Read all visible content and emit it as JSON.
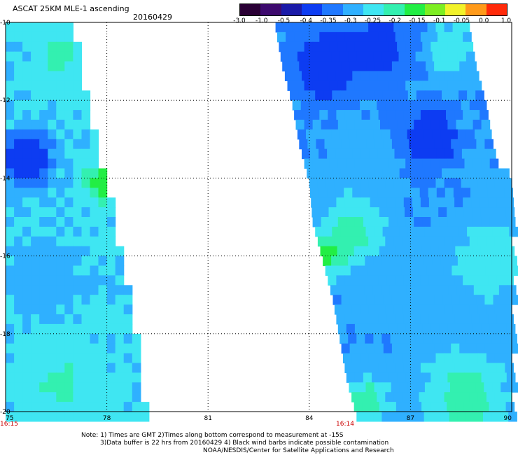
{
  "header": {
    "title": "ASCAT 25KM MLE-1 ascending",
    "date": "20160429"
  },
  "colorbar": {
    "labels": [
      "-3.0",
      "-1.0",
      "-0.5",
      "-0.4",
      "-0.35",
      "-0.3",
      "-0.25",
      "-0.2",
      "-0.15",
      "-0.1",
      "-0.05",
      "0.0",
      "1.0"
    ],
    "colors": [
      "#2a0035",
      "#3d0a6e",
      "#1a1aa8",
      "#0d3cf2",
      "#1f78ff",
      "#2fb0ff",
      "#3fe6f2",
      "#33f0b0",
      "#22ee44",
      "#7dee22",
      "#f2f22a",
      "#ff9a1a",
      "#ff2a0a"
    ]
  },
  "chart_data": {
    "type": "heatmap",
    "title": "ASCAT 25KM MLE-1 ascending",
    "subtitle": "20160429",
    "xlim": [
      75,
      90
    ],
    "ylim": [
      -20,
      -10
    ],
    "x_ticks": [
      "75",
      "78",
      "81",
      "84",
      "87",
      "90"
    ],
    "y_ticks": [
      "-10",
      "-12",
      "-14",
      "-16",
      "-18",
      "-20"
    ],
    "grid": true,
    "time_labels": [
      {
        "text": "16:15",
        "x": 75
      },
      {
        "text": "16:14",
        "x": 85
      }
    ],
    "swaths": [
      {
        "name": "west",
        "rows": [
          {
            "lat": -10.0,
            "x0": 75.0,
            "x1": 76.9
          },
          {
            "lat": -11.0,
            "x0": 75.0,
            "x1": 77.2
          },
          {
            "lat": -12.0,
            "x0": 75.0,
            "x1": 77.3
          },
          {
            "lat": -13.0,
            "x0": 75.0,
            "x1": 77.6
          },
          {
            "lat": -14.0,
            "x0": 75.0,
            "x1": 77.9
          },
          {
            "lat": -15.0,
            "x0": 75.0,
            "x1": 78.2
          },
          {
            "lat": -16.0,
            "x0": 75.0,
            "x1": 78.3
          },
          {
            "lat": -17.0,
            "x0": 75.0,
            "x1": 78.6
          },
          {
            "lat": -18.0,
            "x0": 75.0,
            "x1": 78.8
          },
          {
            "lat": -19.0,
            "x0": 75.0,
            "x1": 78.9
          },
          {
            "lat": -20.0,
            "x0": 75.0,
            "x1": 79.1
          }
        ],
        "features": [
          {
            "lat": -13.4,
            "lon": 75.5,
            "value": -0.45,
            "radius": 0.7
          },
          {
            "lat": -10.8,
            "lon": 76.5,
            "value": -0.18,
            "radius": 0.6
          },
          {
            "lat": -14.0,
            "lon": 77.7,
            "value": -0.12,
            "radius": 0.5
          },
          {
            "lat": -16.5,
            "lon": 76.0,
            "value": -0.27,
            "radius": 1.2
          },
          {
            "lat": -19.2,
            "lon": 76.5,
            "value": -0.19,
            "radius": 1.0
          }
        ],
        "base": -0.24
      },
      {
        "name": "east",
        "rows": [
          {
            "lat": -10.0,
            "x0": 83.0,
            "x1": 88.7
          },
          {
            "lat": -11.0,
            "x0": 83.2,
            "x1": 88.9
          },
          {
            "lat": -12.0,
            "x0": 83.5,
            "x1": 89.2
          },
          {
            "lat": -13.0,
            "x0": 83.7,
            "x1": 89.4
          },
          {
            "lat": -14.0,
            "x0": 84.0,
            "x1": 89.8
          },
          {
            "lat": -15.0,
            "x0": 84.1,
            "x1": 90.0
          },
          {
            "lat": -16.0,
            "x0": 84.4,
            "x1": 90.0
          },
          {
            "lat": -17.0,
            "x0": 84.7,
            "x1": 90.0
          },
          {
            "lat": -18.0,
            "x0": 84.9,
            "x1": 90.0
          },
          {
            "lat": -19.0,
            "x0": 85.1,
            "x1": 90.0
          },
          {
            "lat": -20.0,
            "x0": 85.4,
            "x1": 90.0
          }
        ],
        "features": [
          {
            "lat": -11.0,
            "lon": 84.4,
            "value": -0.4,
            "radius": 1.0
          },
          {
            "lat": -10.5,
            "lon": 86.0,
            "value": -0.37,
            "radius": 1.1
          },
          {
            "lat": -12.8,
            "lon": 87.4,
            "value": -0.42,
            "radius": 0.8
          },
          {
            "lat": -10.6,
            "lon": 88.0,
            "value": -0.2,
            "radius": 0.7
          },
          {
            "lat": -13.5,
            "lon": 85.4,
            "value": -0.27,
            "radius": 1.0
          },
          {
            "lat": -15.8,
            "lon": 84.5,
            "value": -0.08,
            "radius": 0.5
          },
          {
            "lat": -15.3,
            "lon": 85.2,
            "value": -0.17,
            "radius": 0.9
          },
          {
            "lat": -17.0,
            "lon": 87.0,
            "value": -0.29,
            "radius": 1.5
          },
          {
            "lat": -16.0,
            "lon": 89.2,
            "value": -0.2,
            "radius": 1.0
          },
          {
            "lat": -19.5,
            "lon": 88.5,
            "value": -0.17,
            "radius": 1.2
          },
          {
            "lat": -19.6,
            "lon": 85.6,
            "value": -0.15,
            "radius": 0.6
          }
        ],
        "base": -0.29
      }
    ]
  },
  "footer": {
    "line1": "Note: 1) Times are GMT 2)Times along bottom correspond to measurement at -15S",
    "line2": "3)Data buffer is 22 hrs from 20160429 4) Black wind barbs indicate possible contamination",
    "line3": "NOAA/NESDIS/Center for Satellite Applications and Research"
  }
}
